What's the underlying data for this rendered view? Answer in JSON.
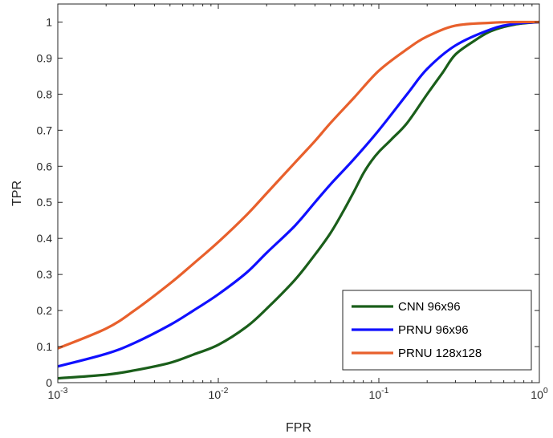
{
  "chart_data": {
    "type": "line",
    "xlabel": "FPR",
    "ylabel": "TPR",
    "xscale": "log",
    "xlim": [
      0.001,
      1
    ],
    "ylim": [
      0,
      1.05
    ],
    "x_ticks": [
      0.001,
      0.01,
      0.1,
      1
    ],
    "x_tick_labels": [
      {
        "base": "10",
        "exp": "-3"
      },
      {
        "base": "10",
        "exp": "-2"
      },
      {
        "base": "10",
        "exp": "-1"
      },
      {
        "base": "10",
        "exp": "0"
      }
    ],
    "y_ticks": [
      0,
      0.1,
      0.2,
      0.3,
      0.4,
      0.5,
      0.6,
      0.7,
      0.8,
      0.9,
      1
    ],
    "y_tick_labels": [
      "0",
      "0.1",
      "0.2",
      "0.3",
      "0.4",
      "0.5",
      "0.6",
      "0.7",
      "0.8",
      "0.9",
      "1"
    ],
    "grid": false,
    "legend_position": "bottom-right",
    "series": [
      {
        "name": "CNN 96x96",
        "color": "#1a5e1a",
        "x": [
          0.001,
          0.002,
          0.003,
          0.005,
          0.007,
          0.01,
          0.015,
          0.02,
          0.03,
          0.04,
          0.05,
          0.06,
          0.07,
          0.08,
          0.09,
          0.1,
          0.12,
          0.15,
          0.2,
          0.25,
          0.3,
          0.4,
          0.5,
          0.7,
          1
        ],
        "y": [
          0.012,
          0.022,
          0.034,
          0.055,
          0.078,
          0.105,
          0.155,
          0.205,
          0.285,
          0.355,
          0.415,
          0.475,
          0.53,
          0.58,
          0.615,
          0.64,
          0.675,
          0.72,
          0.8,
          0.86,
          0.91,
          0.95,
          0.975,
          0.993,
          1.0
        ]
      },
      {
        "name": "PRNU 96x96",
        "color": "#1010ff",
        "x": [
          0.001,
          0.002,
          0.003,
          0.005,
          0.007,
          0.01,
          0.015,
          0.02,
          0.03,
          0.04,
          0.05,
          0.07,
          0.1,
          0.15,
          0.2,
          0.3,
          0.5,
          0.7,
          1
        ],
        "y": [
          0.045,
          0.08,
          0.11,
          0.16,
          0.2,
          0.245,
          0.305,
          0.36,
          0.435,
          0.5,
          0.55,
          0.62,
          0.7,
          0.8,
          0.87,
          0.935,
          0.98,
          0.995,
          1.0
        ]
      },
      {
        "name": "PRNU 128x128",
        "color": "#e8602c",
        "x": [
          0.001,
          0.002,
          0.003,
          0.005,
          0.007,
          0.01,
          0.015,
          0.02,
          0.03,
          0.04,
          0.05,
          0.07,
          0.1,
          0.15,
          0.2,
          0.3,
          0.5,
          0.7,
          1
        ],
        "y": [
          0.095,
          0.15,
          0.2,
          0.275,
          0.33,
          0.39,
          0.465,
          0.525,
          0.61,
          0.67,
          0.72,
          0.79,
          0.865,
          0.925,
          0.96,
          0.99,
          0.998,
          1.0,
          1.0
        ]
      }
    ]
  }
}
